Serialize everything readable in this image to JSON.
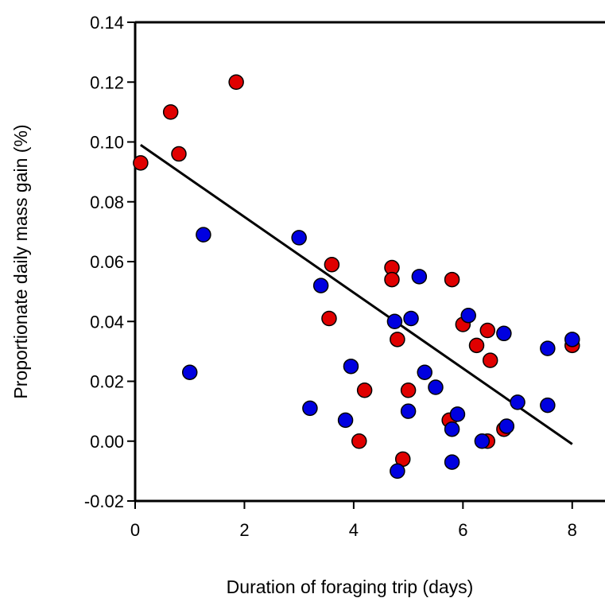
{
  "chart_data": {
    "type": "scatter",
    "title": "",
    "xlabel": "Duration of foraging trip (days)",
    "ylabel": "Proportionate daily mass gain (%)",
    "xlim": [
      0,
      8.6
    ],
    "ylim": [
      -0.02,
      0.14
    ],
    "x_ticks": [
      0,
      2,
      4,
      6,
      8
    ],
    "y_ticks": [
      -0.02,
      0.0,
      0.02,
      0.04,
      0.06,
      0.08,
      0.1,
      0.12,
      0.14
    ],
    "x_tick_labels": [
      "0",
      "2",
      "4",
      "6",
      "8"
    ],
    "y_tick_labels": [
      "-0.02",
      "0.00",
      "0.02",
      "0.04",
      "0.06",
      "0.08",
      "0.10",
      "0.12",
      "0.14"
    ],
    "grid": false,
    "legend": "none",
    "series": [
      {
        "color": "#e00000",
        "points": [
          [
            0.1,
            0.093
          ],
          [
            0.65,
            0.11
          ],
          [
            0.8,
            0.096
          ],
          [
            1.85,
            0.12
          ],
          [
            3.6,
            0.059
          ],
          [
            3.55,
            0.041
          ],
          [
            4.1,
            0.0
          ],
          [
            4.2,
            0.017
          ],
          [
            4.7,
            0.058
          ],
          [
            4.7,
            0.054
          ],
          [
            4.8,
            0.034
          ],
          [
            4.9,
            -0.006
          ],
          [
            5.0,
            0.017
          ],
          [
            5.8,
            0.054
          ],
          [
            5.75,
            0.007
          ],
          [
            6.0,
            0.039
          ],
          [
            6.25,
            0.032
          ],
          [
            6.45,
            0.037
          ],
          [
            6.5,
            0.027
          ],
          [
            6.45,
            0.0
          ],
          [
            6.75,
            0.004
          ],
          [
            8.0,
            0.032
          ]
        ]
      },
      {
        "color": "#0000e0",
        "points": [
          [
            1.0,
            0.023
          ],
          [
            1.25,
            0.069
          ],
          [
            3.0,
            0.068
          ],
          [
            3.4,
            0.052
          ],
          [
            3.2,
            0.011
          ],
          [
            3.85,
            0.007
          ],
          [
            3.95,
            0.025
          ],
          [
            4.75,
            0.04
          ],
          [
            4.8,
            -0.01
          ],
          [
            5.05,
            0.041
          ],
          [
            5.2,
            0.055
          ],
          [
            5.0,
            0.01
          ],
          [
            5.3,
            0.023
          ],
          [
            5.5,
            0.018
          ],
          [
            5.8,
            0.004
          ],
          [
            5.9,
            0.009
          ],
          [
            5.8,
            -0.007
          ],
          [
            6.1,
            0.042
          ],
          [
            6.35,
            0.0
          ],
          [
            6.75,
            0.036
          ],
          [
            6.8,
            0.005
          ],
          [
            7.0,
            0.013
          ],
          [
            7.55,
            0.031
          ],
          [
            7.55,
            0.012
          ],
          [
            8.0,
            0.034
          ]
        ]
      }
    ],
    "trendline": {
      "x": [
        0.1,
        8.0
      ],
      "y": [
        0.099,
        -0.001
      ],
      "color": "#000000"
    }
  }
}
